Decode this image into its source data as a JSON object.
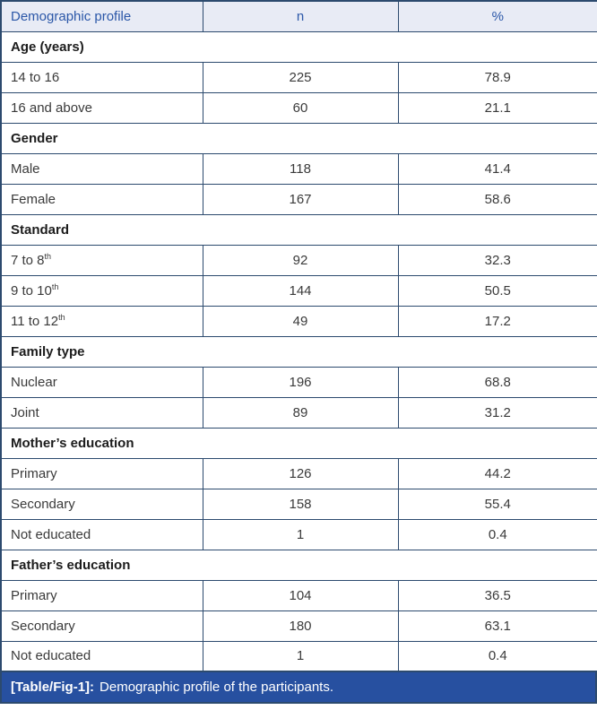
{
  "colors": {
    "grid": "#2c4a6e",
    "header_bg": "#e8ebf5",
    "header_text": "#2b57a8",
    "caption_bg": "#2750a0",
    "caption_text": "#ffffff",
    "body_text": "#3a3a3a",
    "section_text": "#1c1c1c",
    "page_bg": "#ffffff"
  },
  "table": {
    "columns": {
      "label": "Demographic profile",
      "n": "n",
      "pct": "%"
    },
    "sections": [
      {
        "title": "Age (years)",
        "rows": [
          {
            "label": "14 to 16",
            "sup": "",
            "n": "225",
            "pct": "78.9"
          },
          {
            "label": "16 and above",
            "sup": "",
            "n": "60",
            "pct": "21.1"
          }
        ]
      },
      {
        "title": "Gender",
        "rows": [
          {
            "label": "Male",
            "sup": "",
            "n": "118",
            "pct": "41.4"
          },
          {
            "label": "Female",
            "sup": "",
            "n": "167",
            "pct": "58.6"
          }
        ]
      },
      {
        "title": "Standard",
        "rows": [
          {
            "label": "7 to 8",
            "sup": "th",
            "n": "92",
            "pct": "32.3"
          },
          {
            "label": "9 to 10",
            "sup": "th",
            "n": "144",
            "pct": "50.5"
          },
          {
            "label": "11 to 12",
            "sup": "th",
            "n": "49",
            "pct": "17.2"
          }
        ]
      },
      {
        "title": "Family type",
        "rows": [
          {
            "label": "Nuclear",
            "sup": "",
            "n": "196",
            "pct": "68.8"
          },
          {
            "label": "Joint",
            "sup": "",
            "n": "89",
            "pct": "31.2"
          }
        ]
      },
      {
        "title": "Mother’s education",
        "rows": [
          {
            "label": "Primary",
            "sup": "",
            "n": "126",
            "pct": "44.2"
          },
          {
            "label": "Secondary",
            "sup": "",
            "n": "158",
            "pct": "55.4"
          },
          {
            "label": "Not educated",
            "sup": "",
            "n": "1",
            "pct": "0.4"
          }
        ]
      },
      {
        "title": "Father’s education",
        "rows": [
          {
            "label": "Primary",
            "sup": "",
            "n": "104",
            "pct": "36.5"
          },
          {
            "label": "Secondary",
            "sup": "",
            "n": "180",
            "pct": "63.1"
          },
          {
            "label": "Not educated",
            "sup": "",
            "n": "1",
            "pct": "0.4"
          }
        ]
      }
    ],
    "caption": {
      "label": "[Table/Fig-1]:",
      "text": "Demographic profile of the participants."
    }
  },
  "chart_data": {
    "type": "table",
    "title": "[Table/Fig-1]: Demographic profile of the participants.",
    "columns": [
      "Demographic profile",
      "n",
      "%"
    ],
    "rows": [
      [
        "Age (years)",
        "",
        ""
      ],
      [
        "14 to 16",
        225,
        78.9
      ],
      [
        "16 and above",
        60,
        21.1
      ],
      [
        "Gender",
        "",
        ""
      ],
      [
        "Male",
        118,
        41.4
      ],
      [
        "Female",
        167,
        58.6
      ],
      [
        "Standard",
        "",
        ""
      ],
      [
        "7 to 8th",
        92,
        32.3
      ],
      [
        "9 to 10th",
        144,
        50.5
      ],
      [
        "11 to 12th",
        49,
        17.2
      ],
      [
        "Family type",
        "",
        ""
      ],
      [
        "Nuclear",
        196,
        68.8
      ],
      [
        "Joint",
        89,
        31.2
      ],
      [
        "Mother's education",
        "",
        ""
      ],
      [
        "Primary",
        126,
        44.2
      ],
      [
        "Secondary",
        158,
        55.4
      ],
      [
        "Not educated",
        1,
        0.4
      ],
      [
        "Father's education",
        "",
        ""
      ],
      [
        "Primary",
        104,
        36.5
      ],
      [
        "Secondary",
        180,
        63.1
      ],
      [
        "Not educated",
        1,
        0.4
      ]
    ]
  }
}
